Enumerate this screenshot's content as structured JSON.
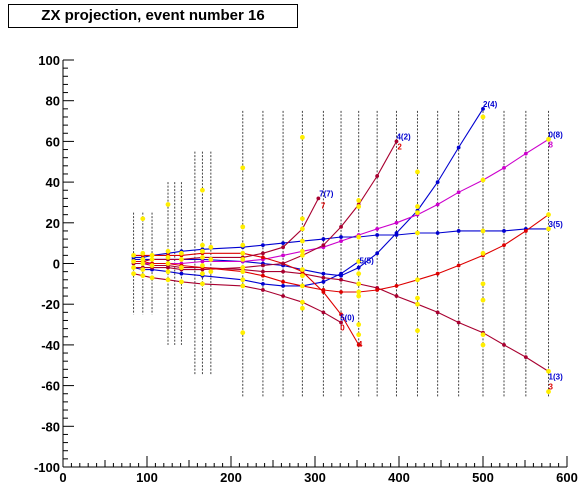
{
  "title": "ZX projection, event number 16",
  "chart_data": {
    "type": "scatter",
    "title": "ZX projection, event number 16",
    "xlabel": "",
    "ylabel": "",
    "xlim": [
      0,
      600
    ],
    "ylim": [
      -100,
      100
    ],
    "x_ticks": [
      0,
      100,
      200,
      300,
      400,
      500,
      600
    ],
    "y_ticks": [
      -100,
      -80,
      -60,
      -40,
      -20,
      0,
      20,
      40,
      60,
      80,
      100
    ],
    "colors": {
      "blue": "#0000d0",
      "red": "#dd0000",
      "darkred": "#a80030",
      "magenta": "#cc00cc",
      "yellow": "#ffee00",
      "gray": "#444444"
    },
    "detector_planes": [
      {
        "x": 84,
        "ymin": -25,
        "ymax": 25
      },
      {
        "x": 95,
        "ymin": -25,
        "ymax": 25
      },
      {
        "x": 106,
        "ymin": -25,
        "ymax": 25
      },
      {
        "x": 125,
        "ymin": -40,
        "ymax": 40
      },
      {
        "x": 133,
        "ymin": -40,
        "ymax": 40
      },
      {
        "x": 141,
        "ymin": -40,
        "ymax": 40
      },
      {
        "x": 157,
        "ymin": -55,
        "ymax": 55
      },
      {
        "x": 166,
        "ymin": -55,
        "ymax": 55
      },
      {
        "x": 176,
        "ymin": -55,
        "ymax": 55
      },
      {
        "x": 214,
        "ymin": -66,
        "ymax": 75
      },
      {
        "x": 238,
        "ymin": -66,
        "ymax": 75
      },
      {
        "x": 262,
        "ymin": -66,
        "ymax": 75
      },
      {
        "x": 285,
        "ymin": -66,
        "ymax": 75
      },
      {
        "x": 310,
        "ymin": -66,
        "ymax": 75
      },
      {
        "x": 331,
        "ymin": -66,
        "ymax": 75
      },
      {
        "x": 352,
        "ymin": -66,
        "ymax": 75
      },
      {
        "x": 374,
        "ymin": -66,
        "ymax": 75
      },
      {
        "x": 397,
        "ymin": -66,
        "ymax": 75
      },
      {
        "x": 422,
        "ymin": -66,
        "ymax": 75
      },
      {
        "x": 446,
        "ymin": -66,
        "ymax": 75
      },
      {
        "x": 471,
        "ymin": -66,
        "ymax": 75
      },
      {
        "x": 500,
        "ymin": -66,
        "ymax": 75
      },
      {
        "x": 525,
        "ymin": -66,
        "ymax": 75
      },
      {
        "x": 551,
        "ymin": -66,
        "ymax": 75
      },
      {
        "x": 578,
        "ymin": -66,
        "ymax": 75
      }
    ],
    "series": [
      {
        "label": "2(4)",
        "color": "blue",
        "x": [
          84,
          95,
          106,
          125,
          141,
          166,
          214,
          238,
          262,
          285,
          310,
          331,
          352,
          374,
          397,
          422,
          446,
          471,
          500
        ],
        "y": [
          2,
          2,
          2,
          2,
          2,
          2,
          1,
          0,
          -1,
          -3,
          -5,
          -6,
          -2,
          5,
          15,
          26,
          40,
          57,
          76
        ]
      },
      {
        "label": "0(8)",
        "color": "magenta",
        "x": [
          84,
          95,
          106,
          125,
          141,
          166,
          214,
          238,
          262,
          285,
          310,
          331,
          352,
          374,
          397,
          422,
          446,
          471,
          500,
          525,
          551,
          578
        ],
        "y": [
          0,
          0,
          0,
          0,
          0,
          1,
          1,
          2,
          4,
          6,
          8,
          11,
          14,
          17,
          20,
          24,
          29,
          35,
          41,
          47,
          54,
          61
        ]
      },
      {
        "label": "3(5)",
        "color": "blue",
        "x": [
          84,
          95,
          106,
          125,
          141,
          166,
          214,
          238,
          262,
          285,
          310,
          331,
          352,
          374,
          397,
          422,
          446,
          471,
          500,
          525,
          551,
          578
        ],
        "y": [
          3,
          3,
          4,
          5,
          6,
          7,
          8,
          9,
          10,
          11,
          12,
          13,
          13,
          14,
          14,
          15,
          15,
          16,
          16,
          16,
          17,
          17
        ]
      },
      {
        "label": "5(5)",
        "color": "blue",
        "x": [
          84,
          95,
          106,
          125,
          141,
          166,
          214,
          238,
          262,
          285,
          310,
          331,
          352
        ],
        "y": [
          -2,
          -3,
          -3,
          -4,
          -5,
          -6,
          -8,
          -10,
          -11,
          -11,
          -9,
          -5,
          1
        ]
      },
      {
        "label": "5(0)",
        "color": "darkred",
        "x": [
          84,
          95,
          106,
          125,
          141,
          166,
          214,
          238,
          262,
          285,
          310,
          331
        ],
        "y": [
          -5,
          -6,
          -7,
          -8,
          -9,
          -10,
          -11,
          -13,
          -16,
          -19,
          -24,
          -29
        ]
      },
      {
        "label": "1(3)",
        "color": "darkred",
        "x": [
          84,
          95,
          106,
          125,
          141,
          166,
          214,
          238,
          262,
          285,
          310,
          331,
          352,
          374,
          397,
          422,
          446,
          471,
          500,
          525,
          551,
          578
        ],
        "y": [
          0,
          0,
          -1,
          -1,
          -2,
          -2,
          -3,
          -4,
          -4,
          -5,
          -7,
          -8,
          -10,
          -12,
          -16,
          -20,
          -24,
          -29,
          -34,
          -40,
          -46,
          -53
        ]
      },
      {
        "label": "7",
        "color": "red",
        "x": [
          84,
          95,
          106,
          125,
          141,
          166,
          214,
          238,
          262,
          285,
          310,
          331,
          352
        ],
        "y": [
          4,
          4,
          4,
          4,
          4,
          5,
          5,
          3,
          0,
          -4,
          -14,
          -25,
          -40
        ]
      },
      {
        "label": "4(2)",
        "color": "darkred",
        "x": [
          84,
          95,
          106,
          125,
          141,
          166,
          214,
          238,
          262,
          285,
          310,
          331,
          352,
          374,
          397
        ],
        "y": [
          -2,
          -2,
          -2,
          -2,
          -3,
          -3,
          -2,
          -1,
          0,
          4,
          9,
          18,
          29,
          43,
          60
        ]
      },
      {
        "label": "7(7)",
        "color": "darkred",
        "x": [
          84,
          95,
          106,
          125,
          141,
          166,
          214,
          238,
          262,
          285,
          304
        ],
        "y": [
          1,
          1,
          2,
          2,
          2,
          3,
          3,
          5,
          8,
          17,
          32
        ]
      },
      {
        "label": "",
        "color": "red",
        "x": [
          84,
          95,
          106,
          125,
          141,
          166,
          214,
          238,
          262,
          285,
          310,
          331,
          352,
          374,
          397,
          422,
          446,
          471,
          500,
          525,
          551,
          578
        ],
        "y": [
          1,
          1,
          0,
          0,
          -1,
          -2,
          -4,
          -6,
          -9,
          -11,
          -13,
          -14,
          -14,
          -13,
          -11,
          -8,
          -5,
          -1,
          4,
          9,
          16,
          24
        ]
      }
    ],
    "track_labels": [
      {
        "text": "2(4)",
        "x": 500,
        "y": 77,
        "color": "blue"
      },
      {
        "text": "0(8)",
        "x": 578,
        "y": 62,
        "color": "blue"
      },
      {
        "text": "8",
        "x": 578,
        "y": 57,
        "color": "magenta"
      },
      {
        "text": "4(2)",
        "x": 397,
        "y": 61,
        "color": "blue"
      },
      {
        "text": "2",
        "x": 398,
        "y": 56,
        "color": "red"
      },
      {
        "text": "7(7)",
        "x": 305,
        "y": 33,
        "color": "blue"
      },
      {
        "text": "7",
        "x": 307,
        "y": 27,
        "color": "red"
      },
      {
        "text": "3(5)",
        "x": 578,
        "y": 18,
        "color": "blue"
      },
      {
        "text": "5(5)",
        "x": 353,
        "y": 0,
        "color": "blue"
      },
      {
        "text": "5(0)",
        "x": 330,
        "y": -28,
        "color": "blue"
      },
      {
        "text": "0",
        "x": 330,
        "y": -33,
        "color": "red"
      },
      {
        "text": "4",
        "x": 351,
        "y": -41,
        "color": "red"
      },
      {
        "text": "1(3)",
        "x": 578,
        "y": -57,
        "color": "blue"
      },
      {
        "text": "3",
        "x": 578,
        "y": -62,
        "color": "red"
      }
    ],
    "hits": [
      {
        "x": 84,
        "y": 4
      },
      {
        "x": 84,
        "y": 1
      },
      {
        "x": 84,
        "y": -2
      },
      {
        "x": 84,
        "y": -5
      },
      {
        "x": 95,
        "y": 22
      },
      {
        "x": 95,
        "y": 5
      },
      {
        "x": 95,
        "y": 2
      },
      {
        "x": 95,
        "y": 0
      },
      {
        "x": 95,
        "y": -3
      },
      {
        "x": 95,
        "y": -6
      },
      {
        "x": 106,
        "y": 4
      },
      {
        "x": 106,
        "y": 2
      },
      {
        "x": 106,
        "y": -1
      },
      {
        "x": 106,
        "y": -7
      },
      {
        "x": 125,
        "y": 29
      },
      {
        "x": 125,
        "y": 6
      },
      {
        "x": 125,
        "y": 3
      },
      {
        "x": 125,
        "y": 0
      },
      {
        "x": 125,
        "y": -4
      },
      {
        "x": 125,
        "y": -8
      },
      {
        "x": 141,
        "y": 5
      },
      {
        "x": 141,
        "y": 2
      },
      {
        "x": 141,
        "y": -2
      },
      {
        "x": 141,
        "y": -9
      },
      {
        "x": 166,
        "y": 36
      },
      {
        "x": 166,
        "y": 9
      },
      {
        "x": 166,
        "y": 6
      },
      {
        "x": 166,
        "y": 3
      },
      {
        "x": 166,
        "y": -1
      },
      {
        "x": 166,
        "y": -5
      },
      {
        "x": 166,
        "y": -10
      },
      {
        "x": 176,
        "y": 8
      },
      {
        "x": 176,
        "y": 2
      },
      {
        "x": 176,
        "y": -4
      },
      {
        "x": 214,
        "y": 47
      },
      {
        "x": 214,
        "y": 18
      },
      {
        "x": 214,
        "y": 9
      },
      {
        "x": 214,
        "y": 5
      },
      {
        "x": 214,
        "y": 2
      },
      {
        "x": 214,
        "y": -2
      },
      {
        "x": 214,
        "y": -4
      },
      {
        "x": 214,
        "y": -8
      },
      {
        "x": 214,
        "y": -11
      },
      {
        "x": 214,
        "y": -34
      },
      {
        "x": 285,
        "y": 62
      },
      {
        "x": 285,
        "y": 22
      },
      {
        "x": 285,
        "y": 17
      },
      {
        "x": 285,
        "y": 11
      },
      {
        "x": 285,
        "y": 6
      },
      {
        "x": 285,
        "y": 4
      },
      {
        "x": 285,
        "y": -3
      },
      {
        "x": 285,
        "y": -6
      },
      {
        "x": 285,
        "y": -11
      },
      {
        "x": 285,
        "y": -19
      },
      {
        "x": 285,
        "y": -22
      },
      {
        "x": 352,
        "y": 31
      },
      {
        "x": 352,
        "y": 28
      },
      {
        "x": 352,
        "y": 13
      },
      {
        "x": 352,
        "y": 1
      },
      {
        "x": 352,
        "y": -5
      },
      {
        "x": 352,
        "y": -10
      },
      {
        "x": 352,
        "y": -14
      },
      {
        "x": 352,
        "y": -16
      },
      {
        "x": 352,
        "y": -30
      },
      {
        "x": 352,
        "y": -35
      },
      {
        "x": 422,
        "y": 45
      },
      {
        "x": 422,
        "y": 28
      },
      {
        "x": 422,
        "y": 25
      },
      {
        "x": 422,
        "y": 15
      },
      {
        "x": 422,
        "y": -8
      },
      {
        "x": 422,
        "y": -17
      },
      {
        "x": 422,
        "y": -20
      },
      {
        "x": 422,
        "y": -33
      },
      {
        "x": 500,
        "y": 72
      },
      {
        "x": 500,
        "y": 41
      },
      {
        "x": 500,
        "y": 16
      },
      {
        "x": 500,
        "y": 5
      },
      {
        "x": 500,
        "y": -10
      },
      {
        "x": 500,
        "y": -18
      },
      {
        "x": 500,
        "y": -35
      },
      {
        "x": 500,
        "y": -40
      },
      {
        "x": 578,
        "y": 61
      },
      {
        "x": 578,
        "y": 24
      },
      {
        "x": 578,
        "y": 17
      },
      {
        "x": 578,
        "y": -53
      },
      {
        "x": 578,
        "y": -63
      }
    ]
  }
}
